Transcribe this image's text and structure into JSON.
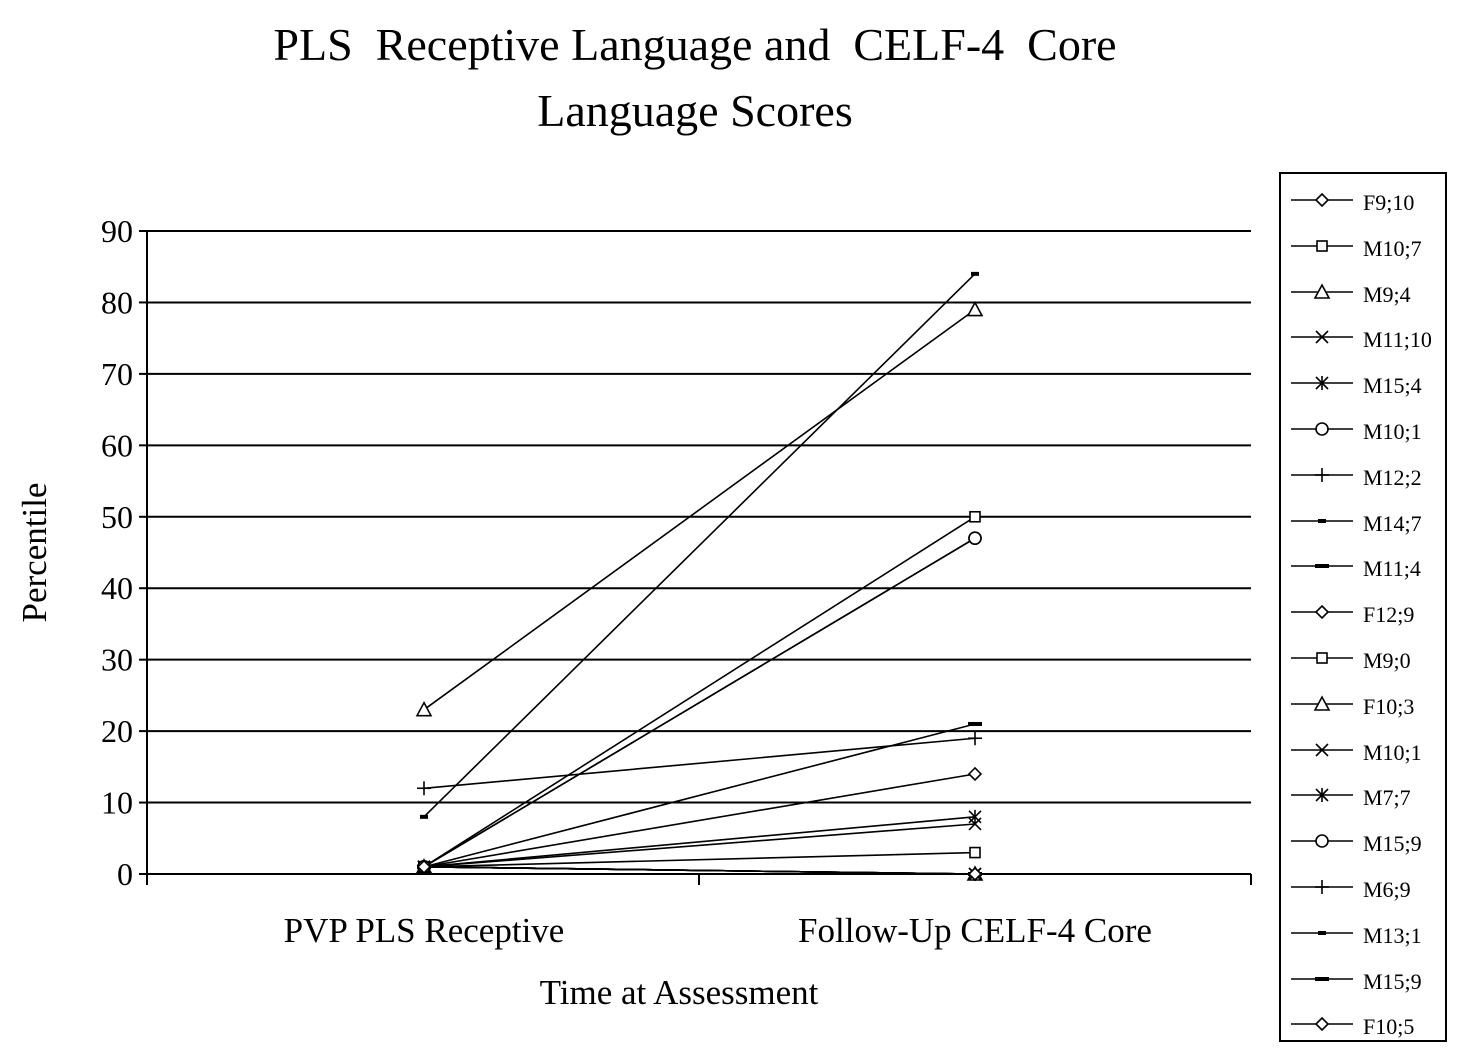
{
  "chart_data": {
    "type": "line",
    "title_lines": [
      "PLS  Receptive Language and  CELF-4  Core",
      "Language Scores"
    ],
    "xlabel": "Time at Assessment",
    "ylabel": "Percentile",
    "categories": [
      "PVP PLS Receptive",
      "Follow-Up CELF-4 Core"
    ],
    "ylim": [
      0,
      90
    ],
    "yticks": [
      0,
      10,
      20,
      30,
      40,
      50,
      60,
      70,
      80,
      90
    ],
    "grid": true,
    "legend_position": "right",
    "series": [
      {
        "name": "F9;10",
        "marker": "diamond",
        "values": [
          1,
          0
        ]
      },
      {
        "name": "M10;7",
        "marker": "square",
        "values": [
          1,
          50
        ]
      },
      {
        "name": "M9;4",
        "marker": "triangle",
        "values": [
          23,
          79
        ]
      },
      {
        "name": "M11;10",
        "marker": "x",
        "values": [
          1,
          7
        ]
      },
      {
        "name": "M15;4",
        "marker": "star",
        "values": [
          1,
          0
        ]
      },
      {
        "name": "M10;1",
        "marker": "circle",
        "values": [
          1,
          47
        ]
      },
      {
        "name": "M12;2",
        "marker": "plus",
        "values": [
          12,
          19
        ]
      },
      {
        "name": "M14;7",
        "marker": "dash",
        "values": [
          8,
          84
        ]
      },
      {
        "name": "M11;4",
        "marker": "bar",
        "values": [
          1,
          21
        ]
      },
      {
        "name": "F12;9",
        "marker": "diamond",
        "values": [
          1,
          14
        ]
      },
      {
        "name": "M9;0",
        "marker": "square",
        "values": [
          1,
          3
        ]
      },
      {
        "name": "F10;3",
        "marker": "triangle",
        "values": [
          1,
          0
        ]
      },
      {
        "name": "M10;1",
        "marker": "x",
        "values": [
          1,
          0
        ]
      },
      {
        "name": "M7;7",
        "marker": "star",
        "values": [
          1,
          8
        ]
      },
      {
        "name": "M15;9",
        "marker": "circle",
        "values": [
          1,
          47
        ]
      },
      {
        "name": "M6;9",
        "marker": "plus",
        "values": [
          1,
          0
        ]
      },
      {
        "name": "M13;1",
        "marker": "dash",
        "values": [
          1,
          0
        ]
      },
      {
        "name": "M15;9",
        "marker": "bar",
        "values": [
          1,
          0
        ]
      },
      {
        "name": "F10;5",
        "marker": "diamond",
        "values": [
          1,
          0
        ]
      }
    ],
    "colors": {
      "line": "#000000",
      "grid": "#000000",
      "background": "#ffffff"
    }
  }
}
